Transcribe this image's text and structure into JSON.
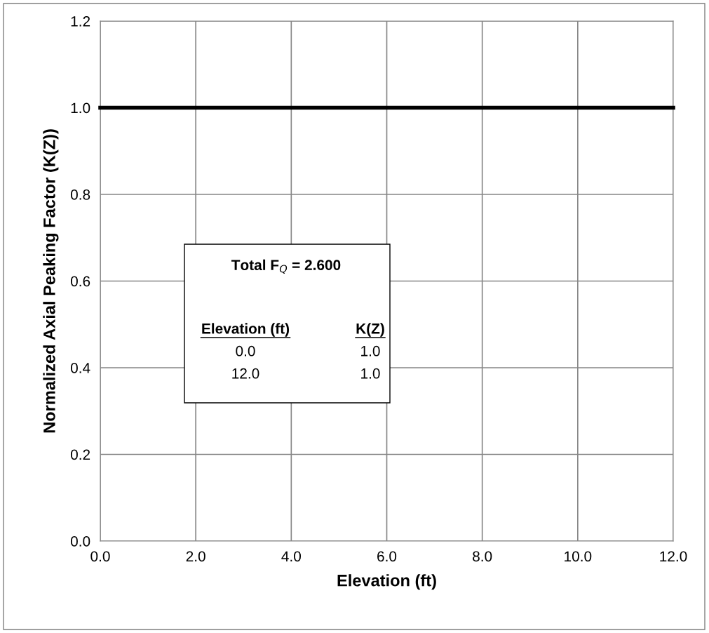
{
  "chart_data": {
    "type": "line",
    "xlabel": "Elevation (ft)",
    "ylabel": "Normalized Axial Peaking Factor (K(Z))",
    "x": [
      0,
      12
    ],
    "series": [
      {
        "color": "#000000",
        "values": [
          1.0,
          1.0
        ]
      }
    ],
    "xlim": [
      0,
      12
    ],
    "ylim": [
      0,
      1.2
    ],
    "xticks": [
      {
        "value": 0,
        "label": "0.0"
      },
      {
        "value": 2,
        "label": "2.0"
      },
      {
        "value": 4,
        "label": "4.0"
      },
      {
        "value": 6,
        "label": "6.0"
      },
      {
        "value": 8,
        "label": "8.0"
      },
      {
        "value": 10,
        "label": "10.0"
      },
      {
        "value": 12,
        "label": "12.0"
      }
    ],
    "yticks": [
      {
        "value": 0,
        "label": "0.0"
      },
      {
        "value": 0.2,
        "label": "0.2"
      },
      {
        "value": 0.4,
        "label": "0.4"
      },
      {
        "value": 0.6,
        "label": "0.6"
      },
      {
        "value": 0.8,
        "label": "0.8"
      },
      {
        "value": 1.0,
        "label": "1.0"
      },
      {
        "value": 1.2,
        "label": "1.2"
      }
    ],
    "grid": true,
    "marker": "none",
    "line_style": "solid",
    "annotations": [
      "Total F$_{Q}$ = 2.600",
      "Elevation (ft)",
      "K(Z)",
      "0.0",
      "1.0",
      "12.0",
      "1.0"
    ]
  }
}
